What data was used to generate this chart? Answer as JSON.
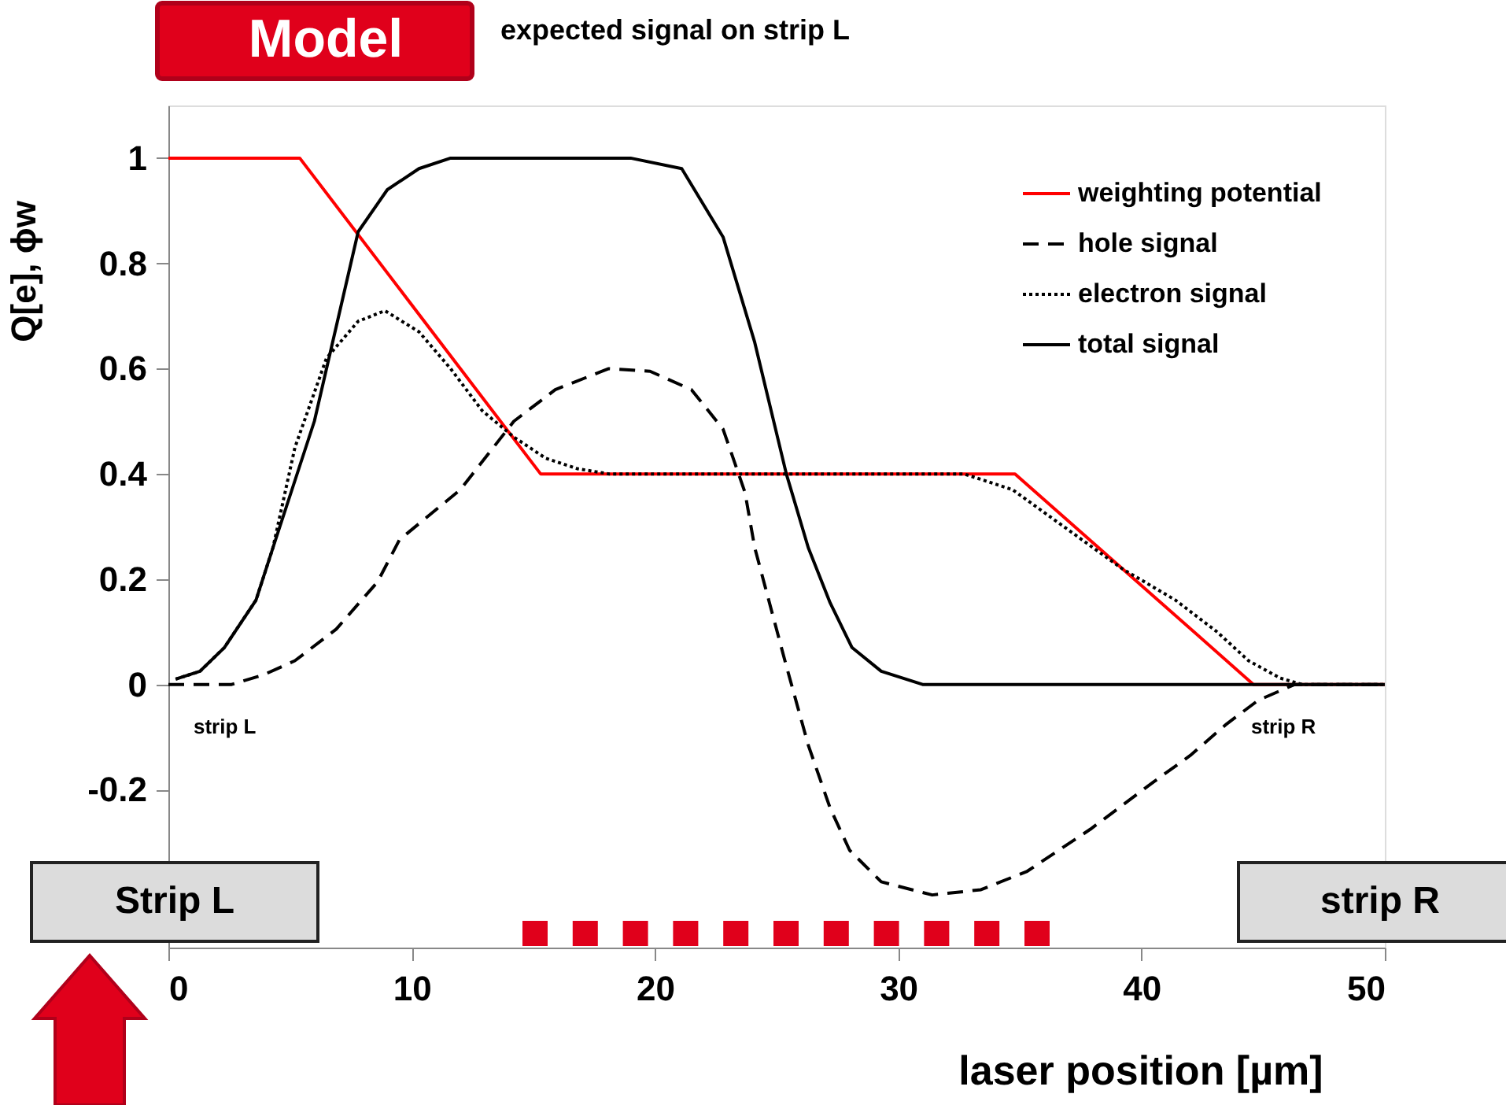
{
  "chart_data": {
    "type": "line",
    "title": "expected signal on strip L",
    "xlabel": "laser position [µm]",
    "ylabel": "Q[e], ϕw",
    "xlim": [
      0,
      50
    ],
    "ylim": [
      -0.5,
      1.1
    ],
    "xticks": [
      0,
      10,
      20,
      30,
      40,
      50
    ],
    "yticks": [
      -0.2,
      {
        "value": 0,
        "label": "0"
      },
      0.2,
      0.4,
      0.6,
      0.8,
      {
        "value": 1,
        "label": "1"
      }
    ],
    "grid": false,
    "legend": "top right",
    "annotations": [
      "Model",
      "strip L",
      "strip R",
      "Strip L",
      "strip R"
    ],
    "series": [
      {
        "name": "weighting potential",
        "color": "#ff0000",
        "line_style": "solid",
        "x": [
          0,
          5.4,
          15.3,
          34.8,
          44.6,
          50
        ],
        "values": [
          1,
          1,
          0.4,
          0.4,
          0,
          0
        ]
      },
      {
        "name": "hole signal",
        "color": "#000000",
        "line_style": "dashed",
        "x": [
          0,
          2.6,
          3.9,
          5.2,
          6.9,
          8.6,
          9.5,
          12.0,
          14.2,
          15.9,
          18.1,
          19.8,
          21.5,
          22.8,
          23.7,
          24.1,
          25.4,
          26.3,
          27.2,
          28.0,
          29.3,
          31.4,
          33.4,
          35.3,
          37.9,
          40.5,
          42.0,
          43.5,
          44.8,
          46.3,
          50
        ],
        "values": [
          0,
          0,
          0.018,
          0.045,
          0.105,
          0.195,
          0.275,
          0.37,
          0.5,
          0.56,
          0.6,
          0.595,
          0.56,
          0.485,
          0.365,
          0.26,
          0.035,
          -0.115,
          -0.235,
          -0.315,
          -0.375,
          -0.4,
          -0.39,
          -0.355,
          -0.275,
          -0.185,
          -0.135,
          -0.075,
          -0.03,
          0,
          0
        ]
      },
      {
        "name": "electron signal",
        "color": "#000000",
        "line_style": "dotted",
        "x": [
          0.3,
          1.3,
          2.3,
          3.6,
          4.3,
          5.2,
          6.5,
          7.8,
          8.9,
          10.3,
          11.6,
          12.9,
          14.2,
          15.5,
          16.8,
          18.1,
          32.7,
          34.7,
          36.2,
          39.2,
          41.4,
          43.1,
          44.4,
          45.7,
          46.6,
          50
        ],
        "values": [
          0.01,
          0.025,
          0.07,
          0.16,
          0.26,
          0.45,
          0.62,
          0.69,
          0.71,
          0.67,
          0.6,
          0.52,
          0.47,
          0.43,
          0.41,
          0.4,
          0.4,
          0.37,
          0.32,
          0.22,
          0.16,
          0.1,
          0.045,
          0.012,
          0,
          0
        ]
      },
      {
        "name": "total signal",
        "color": "#000000",
        "line_style": "solid",
        "x": [
          0.3,
          1.3,
          2.3,
          3.6,
          4.3,
          6.0,
          7.8,
          9.0,
          10.3,
          11.6,
          19.0,
          21.1,
          22.8,
          24.1,
          25.4,
          26.3,
          27.2,
          28.1,
          29.3,
          31.0,
          50
        ],
        "values": [
          0.01,
          0.025,
          0.07,
          0.16,
          0.26,
          0.5,
          0.86,
          0.94,
          0.98,
          1,
          1,
          0.98,
          0.85,
          0.65,
          0.4,
          0.26,
          0.155,
          0.07,
          0.025,
          0,
          0
        ]
      }
    ]
  }
}
